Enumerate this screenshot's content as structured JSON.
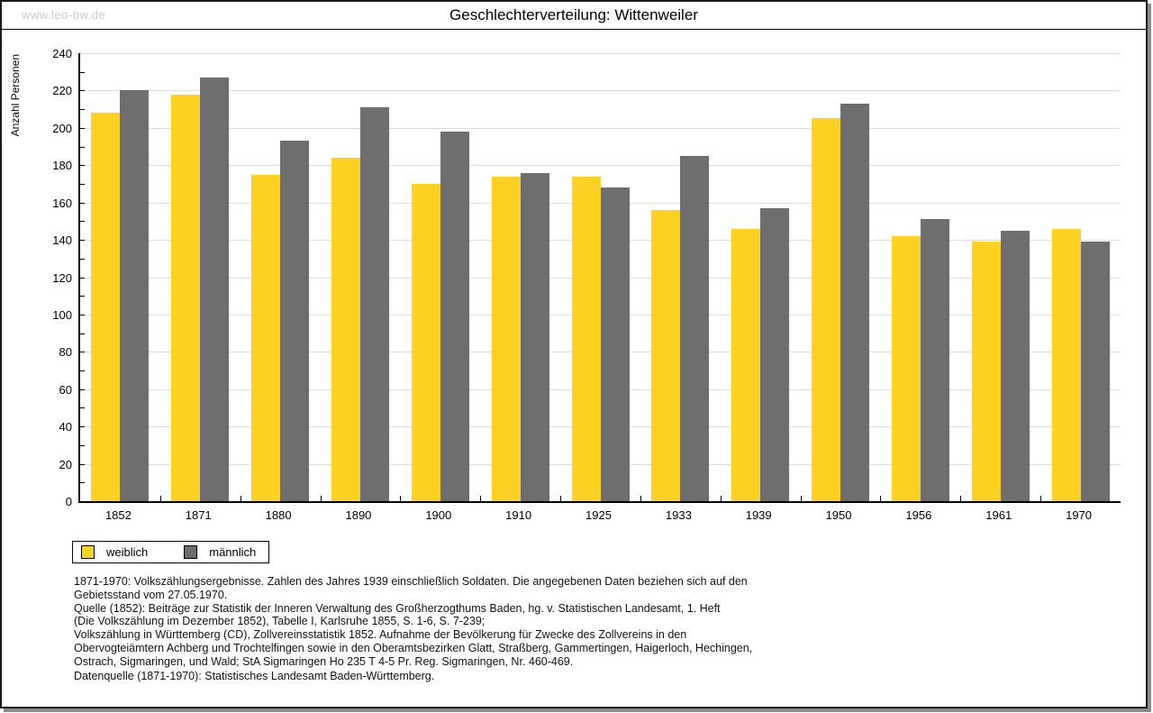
{
  "watermark": "www.leo-bw.de",
  "title": "Geschlechterverteilung: Wittenweiler",
  "chart_data": {
    "type": "bar",
    "title": "Geschlechterverteilung: Wittenweiler",
    "xlabel": "",
    "ylabel": "Anzahl Personen",
    "ylim": [
      0,
      240
    ],
    "ytick_major": 20,
    "ytick_minor": 10,
    "grid": true,
    "legend_position": "bottom-left",
    "categories": [
      "1852",
      "1871",
      "1880",
      "1890",
      "1900",
      "1910",
      "1925",
      "1933",
      "1939",
      "1950",
      "1956",
      "1961",
      "1970"
    ],
    "series": [
      {
        "name": "weiblich",
        "color": "#fcd122",
        "values": [
          208,
          218,
          175,
          184,
          170,
          174,
          174,
          156,
          146,
          205,
          142,
          139,
          146
        ]
      },
      {
        "name": "männlich",
        "color": "#6e6e6e",
        "values": [
          220,
          227,
          193,
          211,
          198,
          176,
          168,
          185,
          157,
          213,
          151,
          145,
          139
        ]
      }
    ]
  },
  "footnotes": {
    "block1": "1871-1970: Volkszählungsergebnisse. Zahlen des Jahres 1939 einschließlich Soldaten. Die angegebenen Daten beziehen sich auf den\nGebietsstand vom 27.05.1970.\nQuelle (1852): Beiträge zur Statistik der Inneren Verwaltung des Großherzogthums Baden, hg. v. Statistischen Landesamt, 1. Heft\n(Die Volkszählung im Dezember 1852), Tabelle I, Karlsruhe 1855, S. 1-6, S. 7-239;\nVolkszählung in Württemberg (CD), Zollvereinsstatistik 1852. Aufnahme der Bevölkerung für Zwecke des Zollvereins in den\nObervogteiämtern Achberg und Trochtelfingen sowie in den Oberamtsbezirken Glatt, Straßberg, Gammertingen, Haigerloch, Hechingen,\nOstrach, Sigmaringen, und Wald; StA Sigmaringen Ho 235 T 4-5 Pr. Reg. Sigmaringen, Nr. 460-469.",
    "block2": "Datenquelle (1871-1970): Statistisches Landesamt Baden-Württemberg."
  },
  "colors": {
    "weiblich": "#fcd122",
    "maennlich": "#6e6e6e",
    "gridline": "#dedede",
    "watermark": "#c9c9c9",
    "frame_border": "#1a1a1a",
    "shadow": "#8c8c8c"
  }
}
